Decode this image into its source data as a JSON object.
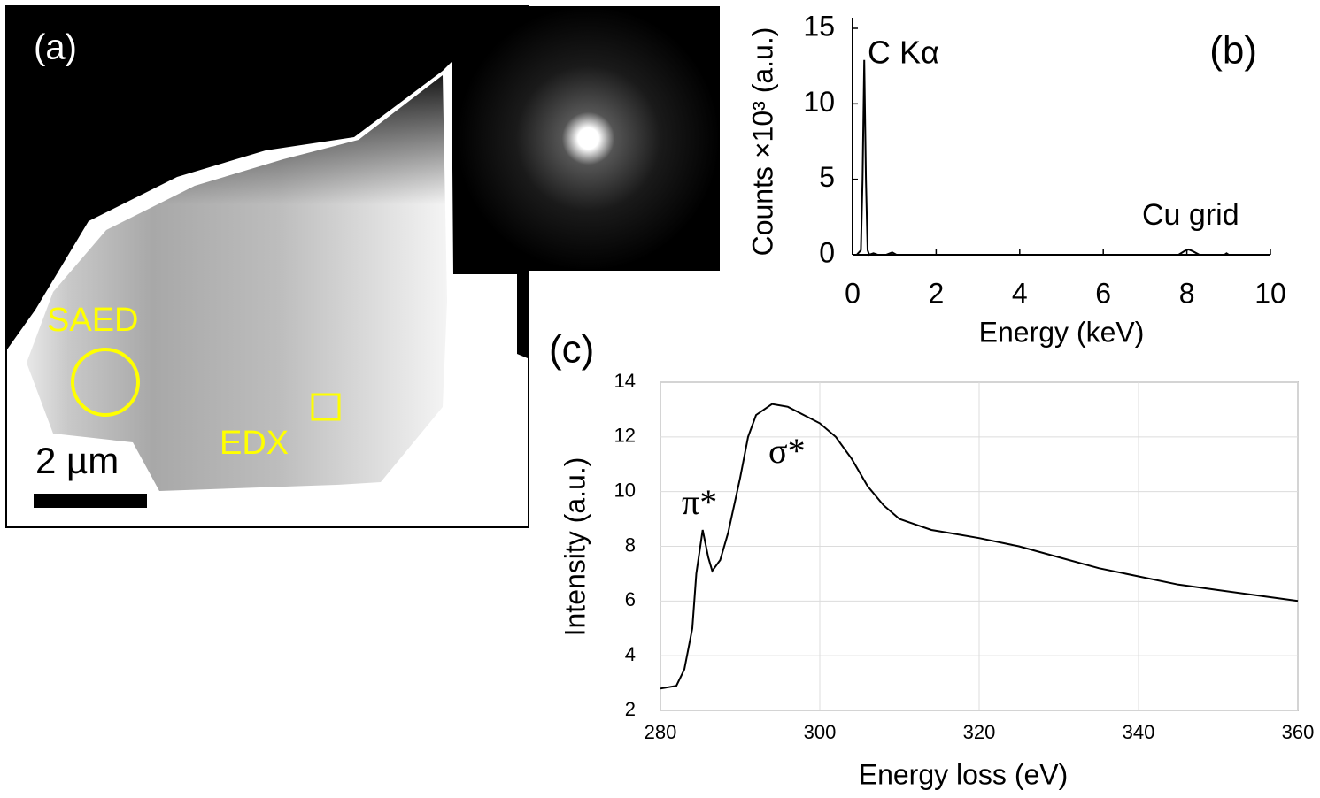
{
  "panel_a": {
    "label": "(a)",
    "saed": "SAED",
    "edx": "EDX",
    "scale": "2 µm"
  },
  "chart_data": [
    {
      "type": "line",
      "panel": "(b)",
      "xlabel": "Energy (keV)",
      "ylabel": "Counts ×10³ (a.u.)",
      "annotations": [
        "C Kα",
        "Cu grid"
      ],
      "x": [
        0,
        0.1,
        0.2,
        0.24,
        0.28,
        0.32,
        0.36,
        0.4,
        0.5,
        0.6,
        0.8,
        0.95,
        1.05,
        1.2,
        2,
        4,
        6,
        7.8,
        7.95,
        8.04,
        8.13,
        8.3,
        8.9,
        8.95,
        9,
        10
      ],
      "values": [
        0,
        0,
        0.3,
        5,
        12.9,
        5,
        0.3,
        0,
        0.1,
        0,
        0,
        0.15,
        0,
        0,
        0,
        0,
        0,
        0,
        0.25,
        0.35,
        0.25,
        0,
        0,
        0.1,
        0,
        0
      ],
      "color": "#000000",
      "xlim": [
        0,
        10
      ],
      "xticks": [
        0,
        2,
        4,
        6,
        8,
        10
      ],
      "ylim": [
        0,
        15
      ],
      "yticks": [
        0,
        5,
        10,
        15
      ],
      "grid": false
    },
    {
      "type": "line",
      "panel": "(c)",
      "xlabel": "Energy loss (eV)",
      "ylabel": "Intensity (a.u.)",
      "annotations": [
        "π*",
        "σ*"
      ],
      "x": [
        280,
        282,
        283,
        284,
        284.5,
        285.3,
        286,
        286.5,
        287.5,
        288.5,
        290,
        291,
        292,
        294,
        296,
        298,
        300,
        302,
        304,
        306,
        308,
        310,
        312,
        314,
        316,
        320,
        325,
        330,
        335,
        340,
        345,
        350,
        355,
        360
      ],
      "values": [
        2.8,
        2.9,
        3.5,
        5,
        7,
        8.6,
        7.6,
        7.1,
        7.5,
        8.5,
        10.5,
        12,
        12.8,
        13.2,
        13.1,
        12.8,
        12.5,
        12,
        11.2,
        10.2,
        9.5,
        9,
        8.8,
        8.6,
        8.5,
        8.3,
        8,
        7.6,
        7.2,
        6.9,
        6.6,
        6.4,
        6.2,
        6
      ],
      "color": "#000000",
      "xlim": [
        280,
        360
      ],
      "xticks": [
        280,
        300,
        320,
        340,
        360
      ],
      "ylim": [
        2,
        14
      ],
      "yticks": [
        2,
        4,
        6,
        8,
        10,
        12,
        14
      ],
      "grid": true
    }
  ]
}
